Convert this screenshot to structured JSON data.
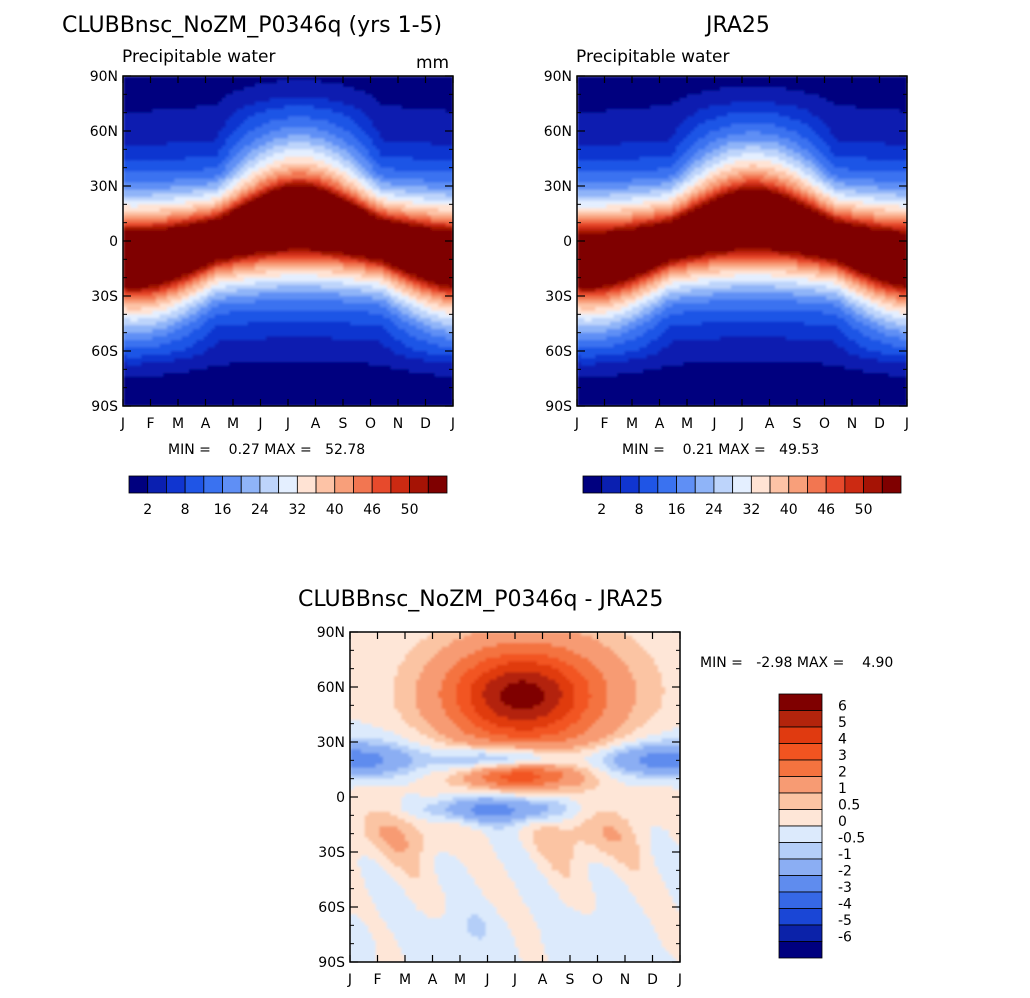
{
  "chart_data": [
    {
      "type": "heatmap",
      "title": "CLUBBnsc_NoZM_P0346q (yrs 1-5)",
      "subtitle": "Precipitable water",
      "units": "mm",
      "stats": "MIN =    0.27 MAX =   52.78",
      "min": 0.27,
      "max": 52.78,
      "x_ticks": [
        "J",
        "F",
        "M",
        "A",
        "M",
        "J",
        "J",
        "A",
        "S",
        "O",
        "N",
        "D",
        "J"
      ],
      "y_ticks": [
        "90N",
        "60N",
        "30N",
        "0",
        "30S",
        "60S",
        "90S"
      ],
      "ylim": [
        -90,
        90
      ],
      "colorbar": {
        "orientation": "horizontal",
        "labels": [
          "2",
          "8",
          "16",
          "24",
          "32",
          "40",
          "46",
          "50"
        ],
        "colors": [
          "#00007f",
          "#0a1fb0",
          "#1035d0",
          "#1f55e6",
          "#3a72f0",
          "#5f8ff5",
          "#8fb4f8",
          "#bdd4fb",
          "#e4efff",
          "#ffe3d4",
          "#fdc3a6",
          "#f89f7a",
          "#f27651",
          "#e74a2c",
          "#cc2a12",
          "#a51305",
          "#7f0000"
        ]
      }
    },
    {
      "type": "heatmap",
      "title": "JRA25",
      "subtitle": "Precipitable water",
      "stats": "MIN =    0.21 MAX =   49.53",
      "min": 0.21,
      "max": 49.53,
      "x_ticks": [
        "J",
        "F",
        "M",
        "A",
        "M",
        "J",
        "J",
        "A",
        "S",
        "O",
        "N",
        "D",
        "J"
      ],
      "y_ticks": [
        "90N",
        "60N",
        "30N",
        "0",
        "30S",
        "60S",
        "90S"
      ],
      "ylim": [
        -90,
        90
      ],
      "colorbar": {
        "orientation": "horizontal",
        "labels": [
          "2",
          "8",
          "16",
          "24",
          "32",
          "40",
          "46",
          "50"
        ],
        "colors": [
          "#00007f",
          "#0a1fb0",
          "#1035d0",
          "#1f55e6",
          "#3a72f0",
          "#5f8ff5",
          "#8fb4f8",
          "#bdd4fb",
          "#e4efff",
          "#ffe3d4",
          "#fdc3a6",
          "#f89f7a",
          "#f27651",
          "#e74a2c",
          "#cc2a12",
          "#a51305",
          "#7f0000"
        ]
      }
    },
    {
      "type": "heatmap",
      "title": "CLUBBnsc_NoZM_P0346q - JRA25",
      "stats": "MIN =   -2.98 MAX =    4.90",
      "min": -2.98,
      "max": 4.9,
      "x_ticks": [
        "J",
        "F",
        "M",
        "A",
        "M",
        "J",
        "J",
        "A",
        "S",
        "O",
        "N",
        "D",
        "J"
      ],
      "y_ticks": [
        "90N",
        "60N",
        "30N",
        "0",
        "30S",
        "60S",
        "90S"
      ],
      "ylim": [
        -90,
        90
      ],
      "colorbar": {
        "orientation": "vertical",
        "labels": [
          "6",
          "5",
          "4",
          "3",
          "2",
          "1",
          "0.5",
          "0",
          "-0.5",
          "-1",
          "-2",
          "-3",
          "-4",
          "-5",
          "-6"
        ],
        "colors": [
          "#7f0000",
          "#b3240c",
          "#e03a10",
          "#f25420",
          "#f4733f",
          "#f79b73",
          "#fbc4a3",
          "#fee6d7",
          "#dceafc",
          "#b4cef8",
          "#8baef3",
          "#5f8cee",
          "#3668e5",
          "#1a46d6",
          "#0b22a9",
          "#00007f"
        ]
      }
    }
  ]
}
